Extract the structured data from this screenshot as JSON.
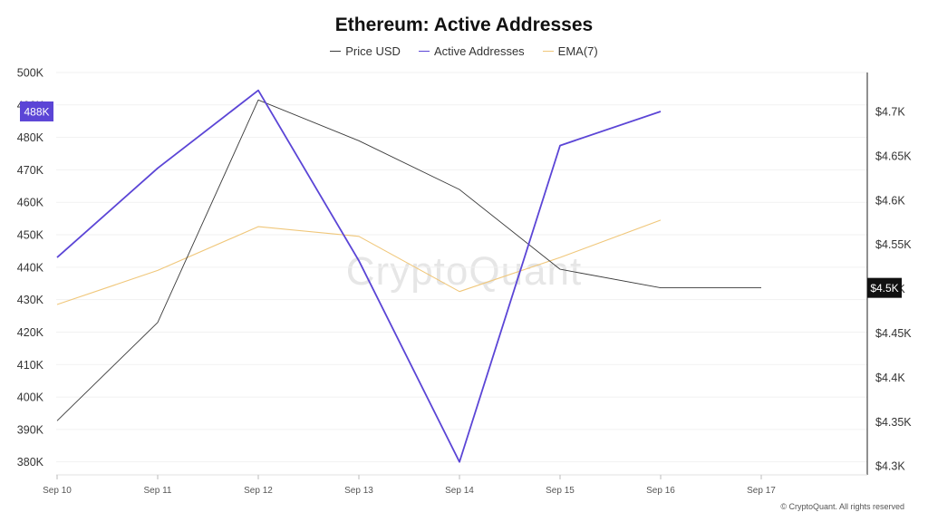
{
  "chart_data": {
    "type": "line",
    "title": "Ethereum: Active Addresses",
    "x": [
      "Sep 10",
      "Sep 11",
      "Sep 12",
      "Sep 13",
      "Sep 14",
      "Sep 15",
      "Sep 16",
      "Sep 17"
    ],
    "left_axis": {
      "ticks": [
        380000,
        390000,
        400000,
        410000,
        420000,
        430000,
        440000,
        450000,
        460000,
        470000,
        480000,
        490000,
        500000
      ],
      "tick_labels": [
        "380K",
        "390K",
        "400K",
        "410K",
        "420K",
        "430K",
        "440K",
        "450K",
        "460K",
        "470K",
        "480K",
        "490K",
        "500K"
      ],
      "range": [
        376000,
        500000
      ]
    },
    "right_axis": {
      "ticks": [
        4300,
        4350,
        4400,
        4450,
        4500,
        4550,
        4600,
        4650,
        4700
      ],
      "tick_labels": [
        "$4.3K",
        "$4.35K",
        "$4.4K",
        "$4.45K",
        "$4.5K",
        "$4.55K",
        "$4.6K",
        "$4.65K",
        "$4.7K"
      ],
      "range": [
        4290,
        4744
      ]
    },
    "series": [
      {
        "name": "Price USD",
        "axis": "right",
        "color": "#3a3a3a",
        "values": [
          4351,
          4462,
          4713,
          4667,
          4612,
          4522,
          4501,
          4501
        ]
      },
      {
        "name": "Active Addresses",
        "axis": "left",
        "color": "#5b45d6",
        "values": [
          443000,
          470500,
          494500,
          442000,
          380000,
          477500,
          488000,
          null
        ]
      },
      {
        "name": "EMA(7)",
        "axis": "left",
        "color": "#f0c77a",
        "values": [
          428500,
          439000,
          452500,
          449500,
          432500,
          443000,
          454500,
          null
        ]
      }
    ],
    "badges": {
      "left_value": "488K",
      "right_value": "$4.5K"
    },
    "grid": true,
    "legend_position": "top-center"
  },
  "watermark": "CryptoQuant",
  "footer": "© CryptoQuant. All rights reserved"
}
